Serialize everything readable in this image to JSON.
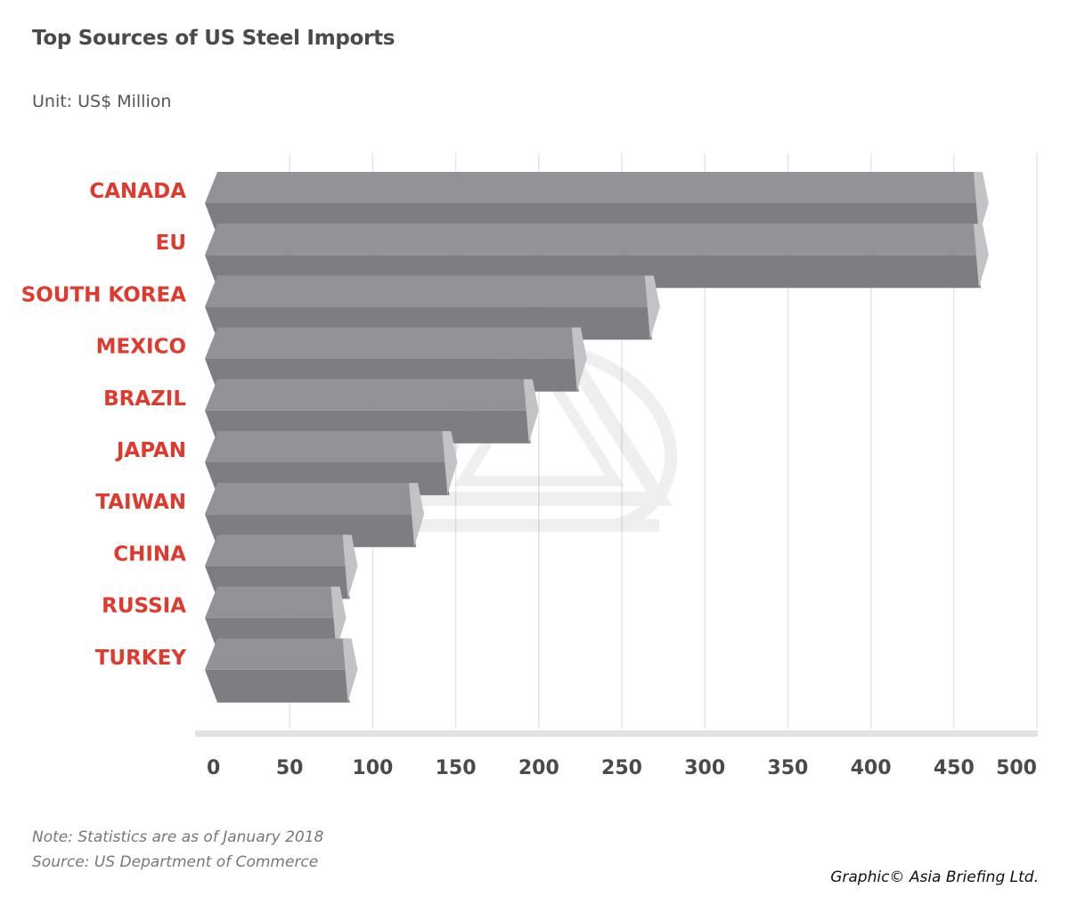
{
  "chart_data": {
    "type": "bar",
    "orientation": "horizontal",
    "title": "Top Sources of US Steel Imports",
    "subtitle": "Unit: US$ Million",
    "categories": [
      "CANADA",
      "EU",
      "SOUTH KOREA",
      "MEXICO",
      "BRAZIL",
      "JAPAN",
      "TAIWAN",
      "CHINA",
      "RUSSIA",
      "TURKEY"
    ],
    "values": [
      464,
      464,
      266,
      222,
      193,
      144,
      124,
      84,
      77,
      84
    ],
    "xlim": [
      0,
      500
    ],
    "x_ticks": [
      "0",
      "50",
      "100",
      "150",
      "200",
      "250",
      "300",
      "350",
      "400",
      "450",
      "500"
    ],
    "grid": "vertical",
    "legend": "none"
  },
  "notes": {
    "line1": "Note: Statistics are as of January 2018",
    "line2": "Source: US Department of Commerce"
  },
  "credit": "Graphic© Asia Briefing Ltd.",
  "colors": {
    "label_red": "#e03a2e",
    "bar_top": "#929397",
    "bar_front": "#7d7e82",
    "bar_cap": "#c2c3c6",
    "grid": "#e6e6e6",
    "axis": "#e3e3e3",
    "tick_text": "#4a4a4a"
  }
}
